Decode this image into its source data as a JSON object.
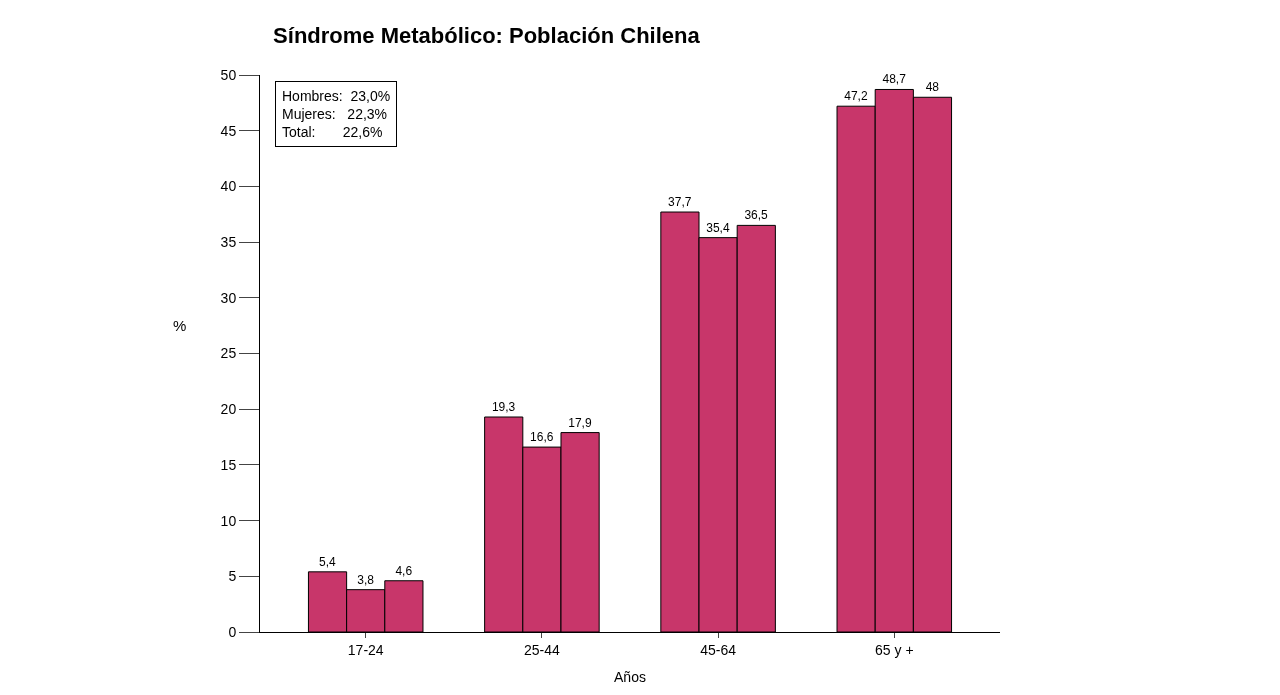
{
  "chart_data": {
    "type": "bar",
    "title": "Síndrome Metabólico: Población Chilena",
    "xlabel": "Años",
    "ylabel": "%",
    "categories": [
      "17-24",
      "25-44",
      "45-64",
      "65 y +"
    ],
    "series": [
      {
        "color": "#c8366a",
        "values": [
          5.4,
          19.3,
          37.7,
          47.2
        ],
        "value_labels": [
          "5,4",
          "19,3",
          "37,7",
          "47,2"
        ]
      },
      {
        "color": "#c8366a",
        "values": [
          3.8,
          16.6,
          35.4,
          48.7
        ],
        "value_labels": [
          "3,8",
          "16,6",
          "35,4",
          "48,7"
        ]
      },
      {
        "color": "#c8366a",
        "values": [
          4.6,
          17.9,
          36.5,
          48
        ],
        "value_labels": [
          "4,6",
          "17,9",
          "36,5",
          "48"
        ]
      }
    ],
    "ylim": [
      0,
      50
    ],
    "yticks": [
      0,
      5,
      10,
      15,
      20,
      25,
      30,
      35,
      40,
      45,
      50
    ],
    "annotations": [
      "Hombres:  23,0%\nMujeres:   22,3%\nTotal:       22,6%"
    ]
  }
}
